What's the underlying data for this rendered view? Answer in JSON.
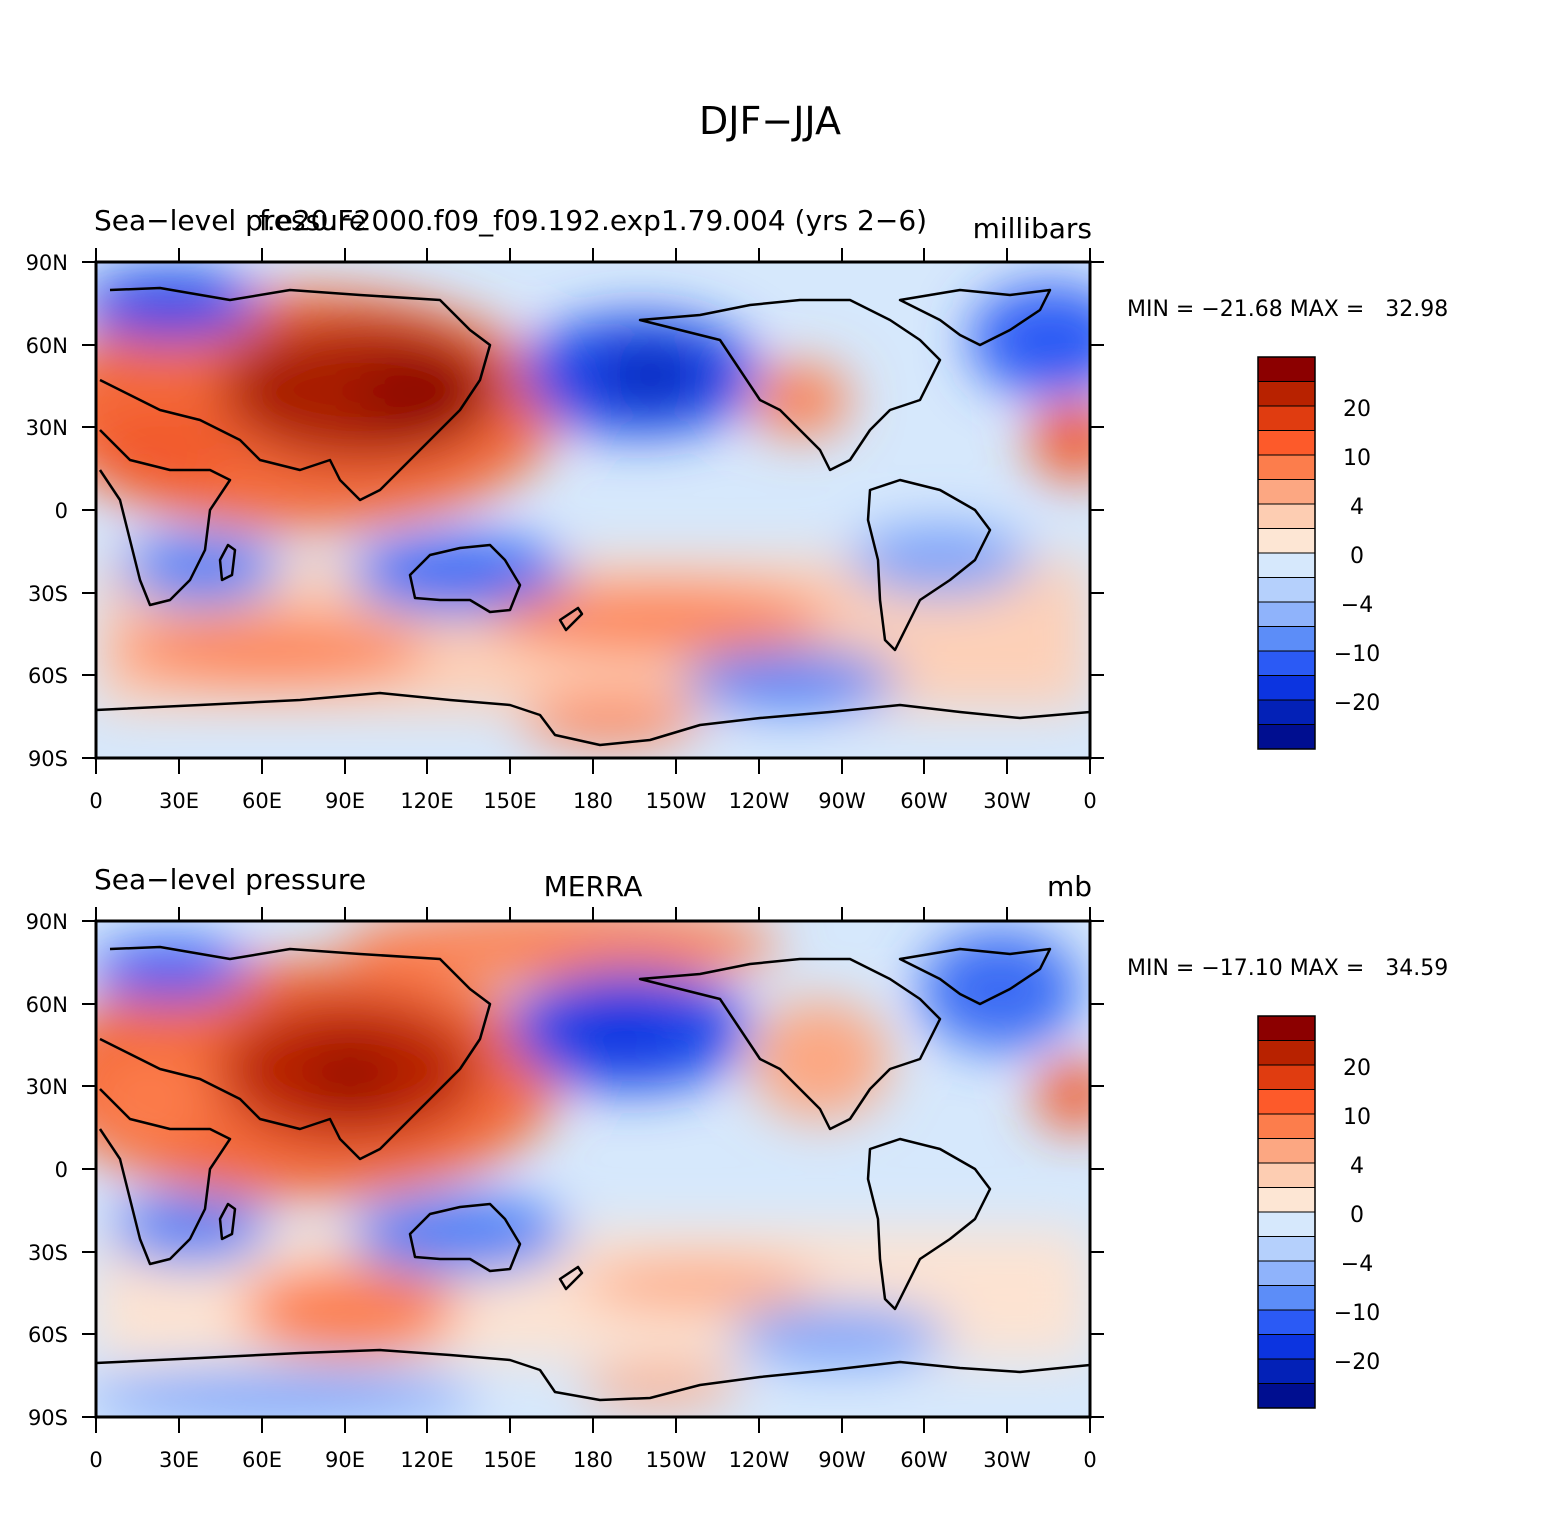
{
  "figure": {
    "title": "DJF−JJA"
  },
  "lat_labels": [
    "90N",
    "60N",
    "30N",
    "0",
    "30S",
    "60S",
    "90S"
  ],
  "lon_labels": [
    "0",
    "30E",
    "60E",
    "90E",
    "120E",
    "150E",
    "180",
    "150W",
    "120W",
    "90W",
    "60W",
    "30W",
    "0"
  ],
  "colorbar": {
    "labels": [
      "20",
      "10",
      "4",
      "0",
      "−4",
      "−10",
      "−20"
    ],
    "colors": [
      "#8c0000",
      "#b82200",
      "#e03c10",
      "#fd5a2a",
      "#fc7d4c",
      "#fca782",
      "#fdcdb2",
      "#fde6d4",
      "#d6e8fc",
      "#b5d0fc",
      "#8fb3fb",
      "#5c8df8",
      "#2b5af5",
      "#0c34e0",
      "#0321b7",
      "#000e90"
    ],
    "note": "16 discrete fill levels, dark red (top) to dark blue (bottom)"
  },
  "panels": [
    {
      "id": "model",
      "left_title": "Sea−level pressure",
      "center_title": "f.e20.F2000.f09_f09.192.exp1.79.004 (yrs 2−6)",
      "units": "millibars",
      "min_max": "MIN = −21.68 MAX =   32.98"
    },
    {
      "id": "obs",
      "left_title": "Sea−level pressure",
      "center_title": "MERRA",
      "units": "mb",
      "min_max": "MIN = −17.10 MAX =   34.59"
    }
  ]
}
